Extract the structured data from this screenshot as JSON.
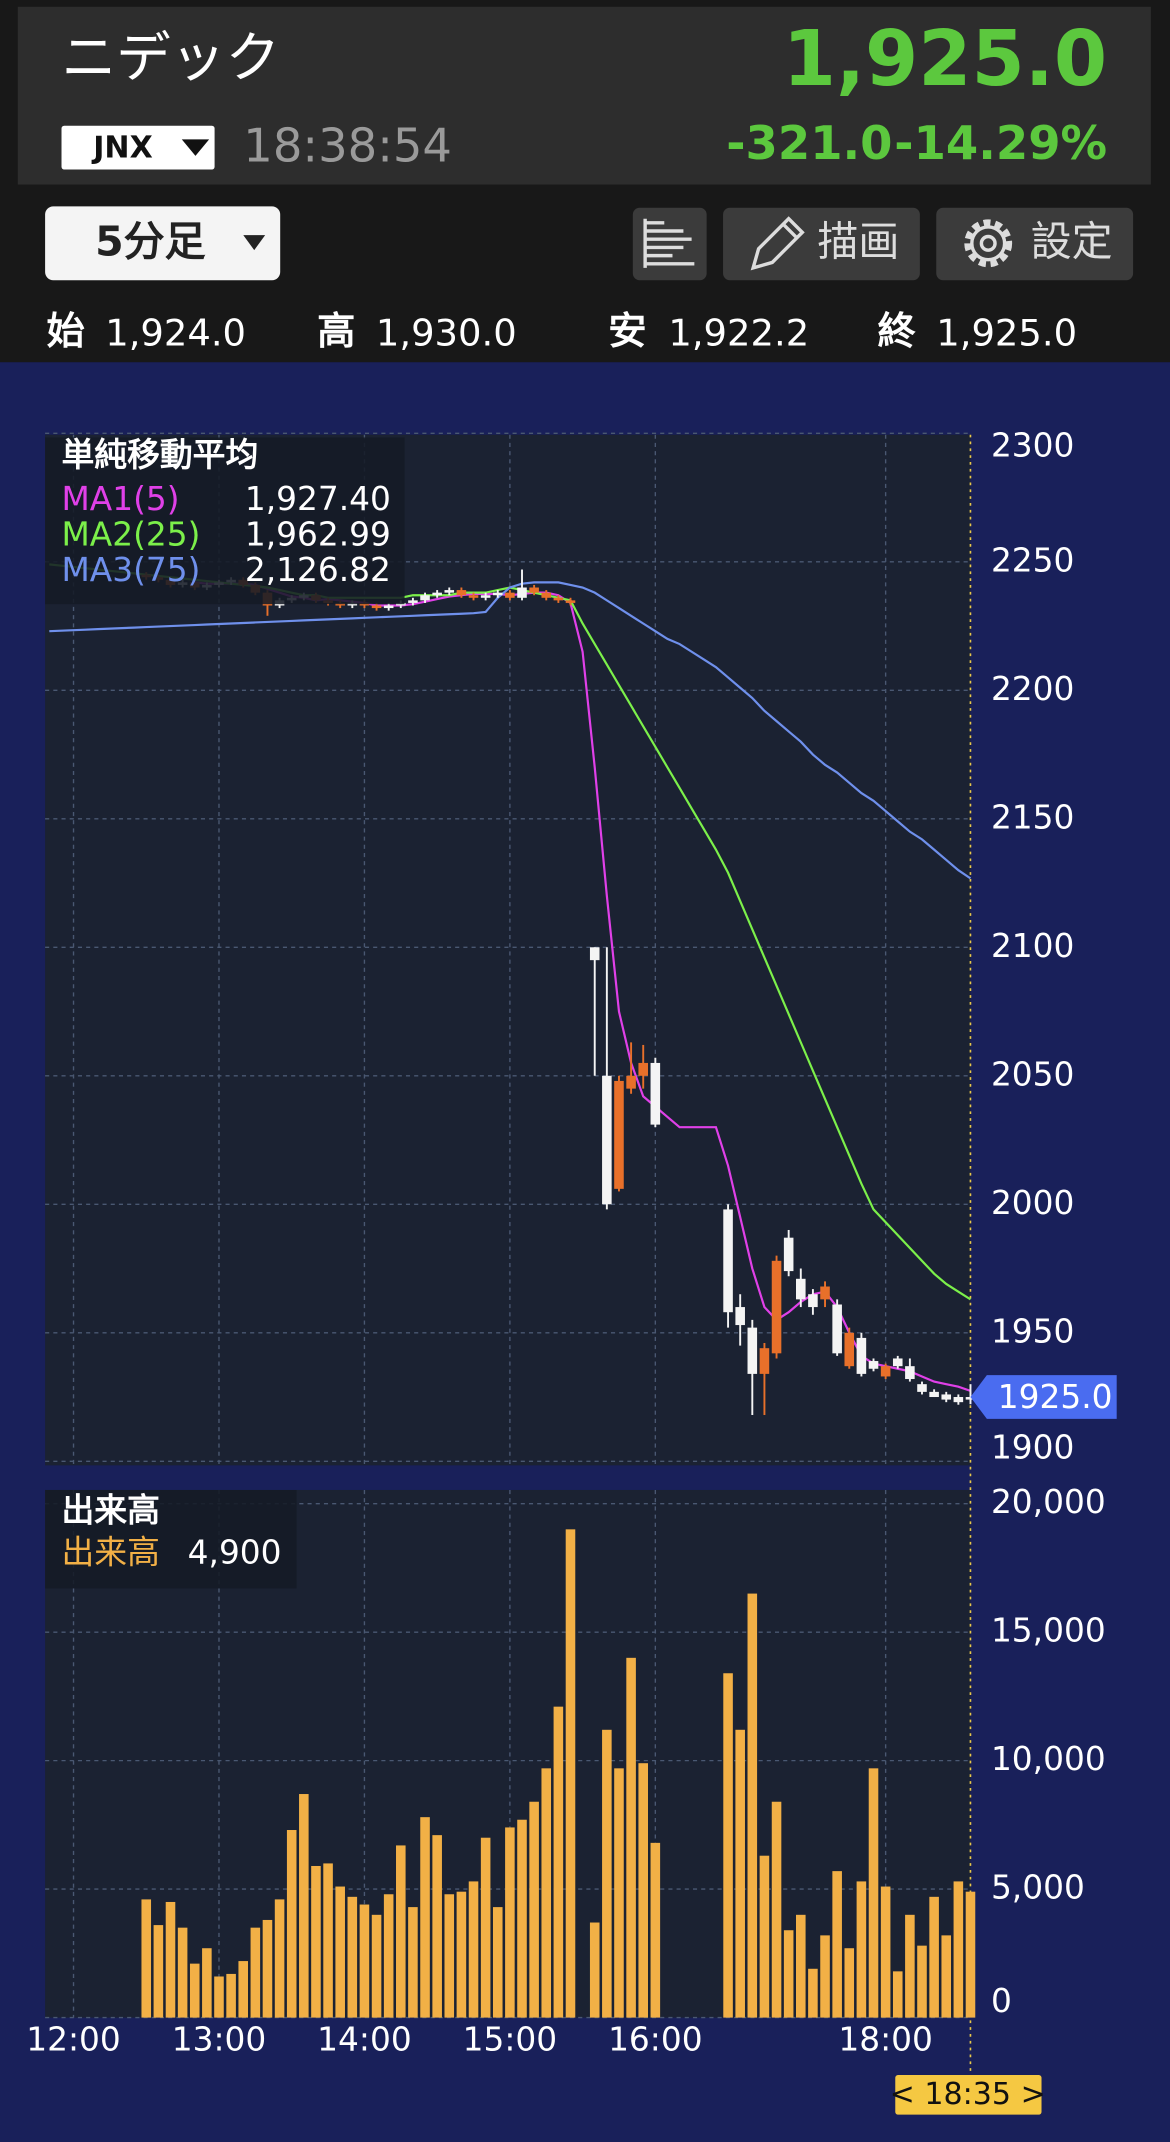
{
  "header": {
    "title": "ニデック",
    "price": "1,925.0",
    "change": "-321.0",
    "change_pct": "-14.29%",
    "market": "JNX",
    "time": "18:38:54",
    "interval": "5分足",
    "draw_button": "描画",
    "settings_button": "設定",
    "ohlc": [
      {
        "label": "始",
        "value": "1,924.0"
      },
      {
        "label": "高",
        "value": "1,930.0"
      },
      {
        "label": "安",
        "value": "1,922.2"
      },
      {
        "label": "終",
        "value": "1,925.0"
      }
    ]
  },
  "chart_data": [
    {
      "type": "candlestick",
      "legend_title": "単純移動平均",
      "ylim": [
        1900,
        2300
      ],
      "yticks": [
        1900,
        1950,
        2000,
        2050,
        2100,
        2150,
        2200,
        2250,
        2300
      ],
      "grid": true,
      "up_color": "#f4f4f4",
      "down_color": "#e8702a",
      "open": [
        null,
        null,
        null,
        null,
        null,
        null,
        null,
        null,
        2245,
        2244,
        2243,
        2241,
        2242,
        2240,
        2241,
        2242,
        2243,
        2241,
        2238,
        2233,
        2235,
        2236,
        2237,
        2235,
        2234,
        2233,
        2234,
        2233,
        2232,
        2233,
        2234,
        2235,
        2237,
        2238,
        2239,
        2237,
        2236,
        2237,
        2238,
        2236,
        2240,
        2238,
        2236,
        2235,
        null,
        2095,
        2000,
        2048,
        2050,
        2055,
        2031,
        null,
        null,
        null,
        null,
        null,
        1958,
        1953,
        1934,
        1944,
        1978,
        1974,
        1963,
        1960,
        1968,
        1942,
        1950,
        1934,
        1936,
        1937,
        1937,
        1932,
        1927,
        1925,
        1924,
        1923,
        1924
      ],
      "high": [
        null,
        null,
        null,
        null,
        null,
        null,
        null,
        null,
        2246,
        2245,
        2244,
        2243,
        2243,
        2242,
        2243,
        2244,
        2244,
        2242,
        2239,
        2236,
        2237,
        2238,
        2238,
        2236,
        2235,
        2235,
        2235,
        2234,
        2234,
        2235,
        2236,
        2238,
        2239,
        2240,
        2240,
        2238,
        2238,
        2239,
        2239,
        2247,
        2241,
        2239,
        2237,
        2236,
        null,
        2100,
        2100,
        2050,
        2063,
        2062,
        2057,
        null,
        null,
        null,
        null,
        null,
        2000,
        1965,
        1955,
        1946,
        1980,
        1990,
        1975,
        1967,
        1970,
        1963,
        1952,
        1950,
        1940,
        1938,
        1941,
        1940,
        1931,
        1928,
        1927,
        1926,
        1930
      ],
      "low": [
        null,
        null,
        null,
        null,
        null,
        null,
        null,
        null,
        2243,
        2242,
        2240,
        2240,
        2239,
        2239,
        2240,
        2241,
        2240,
        2237,
        2229,
        2232,
        2234,
        2235,
        2234,
        2233,
        2232,
        2232,
        2232,
        2231,
        2231,
        2232,
        2233,
        2234,
        2236,
        2237,
        2236,
        2235,
        2235,
        2236,
        2235,
        2235,
        2237,
        2235,
        2234,
        2233,
        null,
        2050,
        1998,
        2005,
        2043,
        2045,
        2030,
        null,
        null,
        null,
        null,
        null,
        1952,
        1945,
        1918,
        1918,
        1940,
        1972,
        1960,
        1957,
        1960,
        1941,
        1936,
        1933,
        1935,
        1932,
        1936,
        1931,
        1926,
        1925,
        1923,
        1922,
        1922.2
      ],
      "close": [
        null,
        null,
        null,
        null,
        null,
        null,
        null,
        null,
        2244,
        2243,
        2241,
        2242,
        2240,
        2241,
        2242,
        2243,
        2241,
        2238,
        2233,
        2235,
        2236,
        2237,
        2235,
        2234,
        2233,
        2234,
        2233,
        2232,
        2233,
        2234,
        2235,
        2237,
        2238,
        2239,
        2237,
        2236,
        2237,
        2238,
        2236,
        2240,
        2238,
        2236,
        2235,
        2234,
        null,
        2100,
        2050,
        2006,
        2045,
        2050,
        2055,
        null,
        null,
        null,
        null,
        null,
        1998,
        1960,
        1952,
        1934,
        1942,
        1987,
        1971,
        1965,
        1963,
        1961,
        1937,
        1948,
        1939,
        1933,
        1940,
        1937,
        1930,
        1927,
        1926,
        1925,
        1925
      ],
      "price_tag": {
        "value": 1925,
        "label": "1925.0"
      },
      "series": [
        {
          "name": "MA1(5)",
          "color": "#e040e8",
          "last_value_label": "1,927.40",
          "values": [
            null,
            null,
            null,
            null,
            null,
            null,
            null,
            null,
            null,
            null,
            null,
            null,
            2242,
            2241.5,
            2241.5,
            2241.5,
            2241.5,
            2241,
            2239.5,
            2238,
            2236.5,
            2236,
            2235,
            2235.5,
            2235,
            2234.5,
            2234,
            2233,
            2233,
            2233,
            2233.5,
            2234.5,
            2235.5,
            2236.5,
            2237,
            2237.5,
            2237.5,
            2237.5,
            2237,
            2237.5,
            2238,
            2238,
            2237,
            2234,
            2215,
            2170,
            2120,
            2075,
            2055,
            2042,
            2038,
            2034,
            2030,
            2030,
            2030,
            2030,
            2015,
            1995,
            1975,
            1960,
            1955,
            1958,
            1962,
            1965,
            1966,
            1960,
            1950,
            1941,
            1938,
            1937,
            1936,
            1935,
            1933,
            1931,
            1930,
            1929,
            1927.4
          ]
        },
        {
          "name": "MA2(25)",
          "color": "#7cf04a",
          "last_value_label": "1,962.99",
          "values": [
            2249,
            2248.5,
            2248,
            2247.5,
            2247,
            2246.5,
            2246,
            2245.5,
            2245,
            2244.5,
            2244,
            2243.5,
            2243,
            2242.5,
            2242,
            2241.5,
            2241,
            2240.5,
            2240,
            2239,
            2238,
            2237,
            2237,
            2236,
            2236,
            2236,
            2236,
            2236,
            2236,
            2236,
            2237,
            2237,
            2237,
            2237,
            2238,
            2238,
            2238,
            2239,
            2240,
            2239,
            2238,
            2237,
            2236,
            2235,
            2226,
            2218,
            2210,
            2202,
            2194,
            2186,
            2178,
            2170,
            2162,
            2154,
            2146,
            2138,
            2129,
            2118,
            2107,
            2096,
            2085,
            2074,
            2063,
            2052,
            2041,
            2030,
            2019,
            2008,
            1998,
            1993,
            1988,
            1983,
            1978,
            1973,
            1969,
            1966,
            1962.99
          ]
        },
        {
          "name": "MA3(75)",
          "color": "#6f90ec",
          "last_value_label": "2,126.82",
          "values": [
            2223,
            2223.2,
            2223.4,
            2223.6,
            2223.8,
            2224,
            2224.2,
            2224.4,
            2224.6,
            2224.8,
            2225,
            2225.2,
            2225.4,
            2225.6,
            2225.8,
            2226,
            2226.2,
            2226.4,
            2226.6,
            2226.8,
            2227,
            2227.2,
            2227.4,
            2227.6,
            2227.8,
            2228,
            2228.2,
            2228.4,
            2228.6,
            2228.8,
            2229,
            2229.2,
            2229.4,
            2229.6,
            2229.8,
            2230,
            2230.5,
            2236,
            2240,
            2241.5,
            2242,
            2242,
            2242,
            2241,
            2240,
            2238,
            2235,
            2232,
            2229,
            2226,
            2223,
            2220,
            2218,
            2215,
            2212,
            2209,
            2205,
            2201,
            2197,
            2192,
            2188,
            2184,
            2180,
            2175,
            2171,
            2168,
            2164,
            2160,
            2157,
            2153,
            2149,
            2145,
            2142,
            2138,
            2134,
            2130,
            2126.82
          ]
        }
      ]
    },
    {
      "type": "bar",
      "title": "出来高",
      "ylim": [
        0,
        20000
      ],
      "yticks": [
        0,
        {
          "value": 5000,
          "label": "5,000"
        },
        {
          "value": 10000,
          "label": "10,000"
        },
        {
          "value": 15000,
          "label": "15,000"
        },
        {
          "value": 20000,
          "label": "20,000"
        }
      ],
      "grid": true,
      "categories": [
        null,
        null,
        "12:00",
        null,
        null,
        null,
        null,
        null,
        null,
        null,
        null,
        null,
        null,
        null,
        "13:00",
        null,
        null,
        null,
        null,
        null,
        null,
        null,
        null,
        null,
        null,
        null,
        "14:00",
        null,
        null,
        null,
        null,
        null,
        null,
        null,
        null,
        null,
        null,
        null,
        "15:00",
        null,
        null,
        null,
        null,
        null,
        null,
        null,
        null,
        null,
        null,
        null,
        "16:00",
        null,
        null,
        null,
        null,
        null,
        null,
        null,
        null,
        null,
        null,
        null,
        null,
        null,
        null,
        null,
        null,
        null,
        null,
        "18:00",
        null,
        null,
        null,
        null,
        null,
        null,
        null
      ],
      "time_tag": "< 18:35 >",
      "series": [
        {
          "name": "出来高",
          "color": "#f2b046",
          "last_value_label": "4,900",
          "values": [
            null,
            null,
            null,
            null,
            null,
            null,
            null,
            null,
            4600,
            3600,
            4500,
            3500,
            2100,
            2700,
            1600,
            1700,
            2200,
            3500,
            3800,
            4600,
            7300,
            8700,
            5900,
            6000,
            5100,
            4700,
            4400,
            4000,
            4800,
            6700,
            4300,
            7800,
            7100,
            4800,
            4900,
            5300,
            7000,
            4300,
            7400,
            7700,
            8400,
            9700,
            12100,
            19000,
            null,
            3700,
            11200,
            9700,
            14000,
            9900,
            6800,
            null,
            null,
            null,
            null,
            null,
            13400,
            11200,
            16500,
            6300,
            8400,
            3400,
            4000,
            1900,
            3200,
            5700,
            2700,
            5300,
            9700,
            5100,
            1800,
            4000,
            2800,
            4700,
            3200,
            5300,
            4900
          ]
        }
      ]
    }
  ]
}
